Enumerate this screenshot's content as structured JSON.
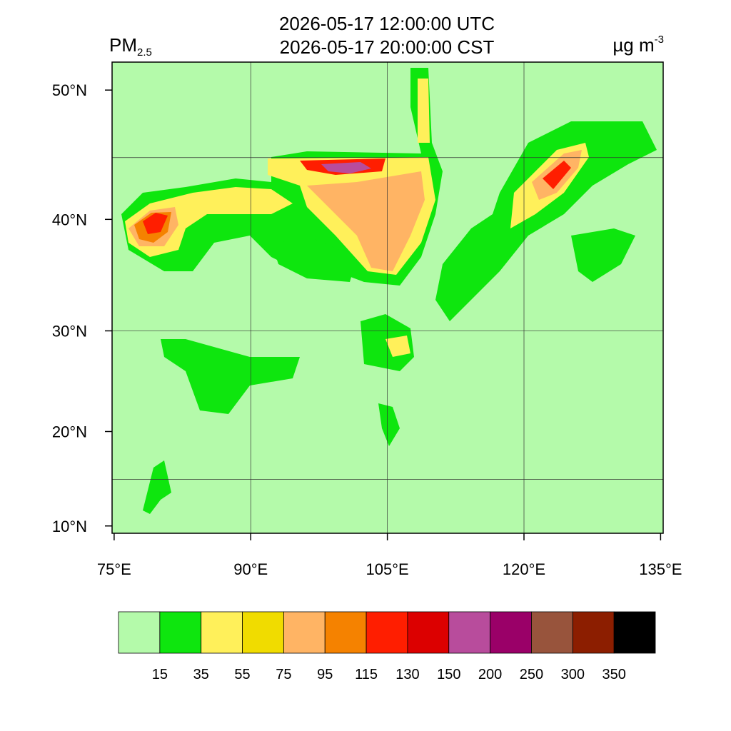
{
  "title_lines": [
    "2026-05-17 12:00:00 UTC",
    "2026-05-17 20:00:00 CST"
  ],
  "variable": {
    "name": "PM",
    "subscript": "2.5"
  },
  "units": {
    "text": "µg m",
    "superscript": "-3"
  },
  "map": {
    "projection": "mercator",
    "background_color": "#b4faaa",
    "lon_ticks": [
      {
        "value": 75,
        "label": "75°E"
      },
      {
        "value": 90,
        "label": "90°E"
      },
      {
        "value": 105,
        "label": "105°E"
      },
      {
        "value": 120,
        "label": "120°E"
      },
      {
        "value": 135,
        "label": "135°E"
      }
    ],
    "lat_ticks": [
      {
        "value": 10,
        "label": "10°N"
      },
      {
        "value": 20,
        "label": "20°N"
      },
      {
        "value": 30,
        "label": "30°N"
      },
      {
        "value": 40,
        "label": "40°N"
      },
      {
        "value": 50,
        "label": "50°N"
      }
    ],
    "grid_lon": [
      90,
      105,
      120
    ],
    "grid_lat": [
      15,
      30,
      45
    ]
  },
  "colorbar": {
    "levels": [
      15,
      35,
      55,
      75,
      95,
      115,
      130,
      150,
      200,
      250,
      300,
      350
    ],
    "colors": [
      "#b4faaa",
      "#0ee60e",
      "#fff05a",
      "#f0dc00",
      "#ffb464",
      "#f58200",
      "#ff1e00",
      "#dc0000",
      "#b84c9c",
      "#9a0068",
      "#98543c",
      "#8c1e00",
      "#000000"
    ]
  }
}
